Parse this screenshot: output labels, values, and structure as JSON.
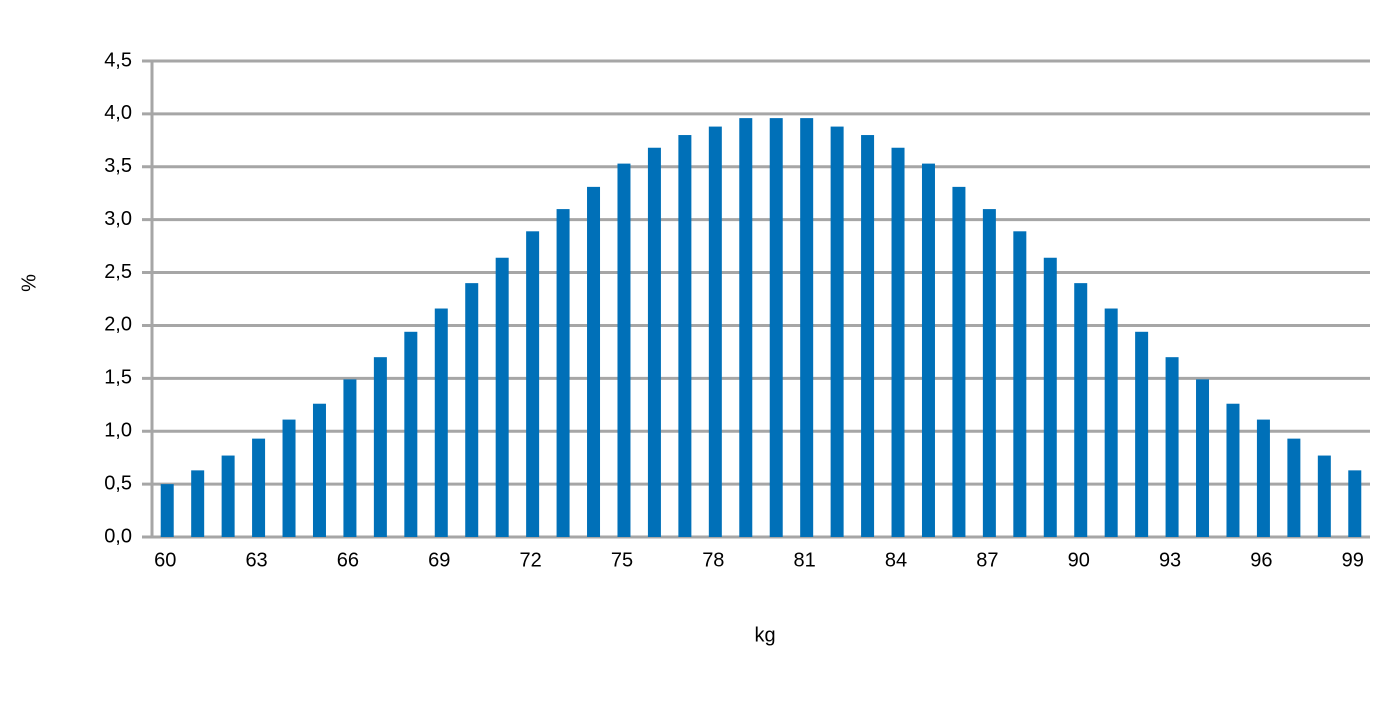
{
  "chart_data": {
    "type": "bar",
    "x_label": "kg",
    "y_label": "%",
    "categories": [
      "60",
      null,
      null,
      "63",
      null,
      null,
      "66",
      null,
      null,
      "69",
      null,
      null,
      "72",
      null,
      null,
      "75",
      null,
      null,
      "78",
      null,
      null,
      "81",
      null,
      null,
      "84",
      null,
      null,
      "87",
      null,
      null,
      "90",
      null,
      null,
      "93",
      null,
      null,
      "96",
      null,
      null,
      "99"
    ],
    "values": [
      0.5,
      0.63,
      0.77,
      0.93,
      1.11,
      1.26,
      1.49,
      1.7,
      1.94,
      2.16,
      2.4,
      2.64,
      2.89,
      3.1,
      3.31,
      3.53,
      3.68,
      3.8,
      3.88,
      3.96,
      3.96,
      3.96,
      3.88,
      3.8,
      3.68,
      3.53,
      3.31,
      3.1,
      2.89,
      2.64,
      2.4,
      2.16,
      1.94,
      1.7,
      1.49,
      1.26,
      1.11,
      0.93,
      0.77,
      0.63
    ],
    "color": "#0070b8",
    "ylim": [
      0,
      4.5
    ],
    "yticks": [
      {
        "value": 0,
        "label": "0,0"
      },
      {
        "value": 0.5,
        "label": "0,5"
      },
      {
        "value": 1,
        "label": "1,0"
      },
      {
        "value": 1.5,
        "label": "1,5"
      },
      {
        "value": 2,
        "label": "2,0"
      },
      {
        "value": 2.5,
        "label": "2,5"
      },
      {
        "value": 3,
        "label": "3,0"
      },
      {
        "value": 3.5,
        "label": "3,5"
      },
      {
        "value": 4,
        "label": "4,0"
      },
      {
        "value": 4.5,
        "label": "4,5"
      }
    ],
    "grid": true
  }
}
